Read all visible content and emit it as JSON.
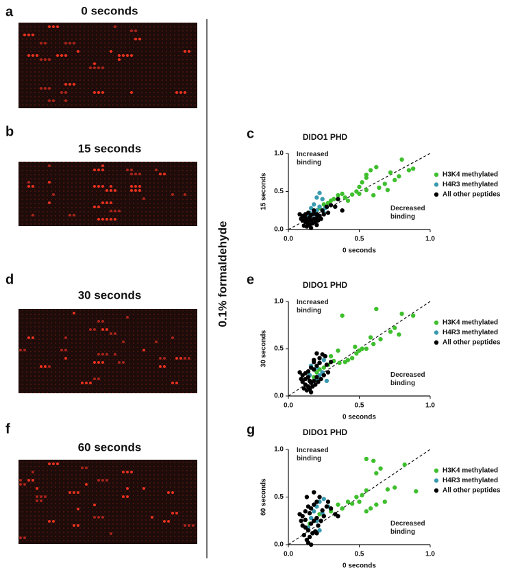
{
  "panels": [
    {
      "letter": "a",
      "title": "0 seconds"
    },
    {
      "letter": "b",
      "title": "15 seconds"
    },
    {
      "letter": "d",
      "title": "30 seconds"
    },
    {
      "letter": "f",
      "title": "60 seconds"
    }
  ],
  "side_label": "0.1% formaldehyde",
  "chart_data": [
    {
      "type": "scatter",
      "letter": "c",
      "title": "DIDO1 PHD",
      "x_label": "0 seconds",
      "y_label": "15 seconds",
      "xlim": [
        0,
        1
      ],
      "ylim": [
        0,
        1
      ],
      "xticks": [
        {
          "value": 0,
          "label": "0.0"
        },
        0.5,
        {
          "value": 1,
          "label": "1.0"
        }
      ],
      "yticks": [
        {
          "value": 0,
          "label": "0.0"
        },
        0.5,
        {
          "value": 1,
          "label": "1.0"
        }
      ],
      "annotations": [
        "Increased binding",
        "Decreased binding"
      ],
      "series": [
        {
          "name": "H3K4 methylated",
          "color": "#3fbf2e",
          "x": [
            0.8,
            0.88,
            0.72,
            0.62,
            0.58,
            0.55,
            0.55,
            0.52,
            0.5,
            0.48,
            0.45,
            0.5,
            0.55,
            0.6,
            0.64,
            0.68,
            0.7,
            0.75,
            0.78,
            0.85,
            0.32,
            0.28,
            0.25,
            0.35,
            0.3,
            0.22,
            0.2,
            0.4,
            0.38,
            0.42
          ],
          "values": [
            0.92,
            0.8,
            0.75,
            0.82,
            0.78,
            0.72,
            0.68,
            0.62,
            0.56,
            0.5,
            0.46,
            0.47,
            0.52,
            0.45,
            0.55,
            0.6,
            0.52,
            0.65,
            0.7,
            0.78,
            0.4,
            0.35,
            0.33,
            0.45,
            0.38,
            0.28,
            0.25,
            0.42,
            0.47,
            0.38
          ]
        },
        {
          "name": "H4R3 methylated",
          "color": "#3a9bb0",
          "x": [
            0.22,
            0.2,
            0.24,
            0.18,
            0.16,
            0.2,
            0.15,
            0.22,
            0.25,
            0.18,
            0.14,
            0.26
          ],
          "values": [
            0.48,
            0.42,
            0.4,
            0.33,
            0.28,
            0.25,
            0.22,
            0.3,
            0.22,
            0.2,
            0.18,
            0.28
          ]
        },
        {
          "name": "All other peptides",
          "color": "#000000",
          "x": [
            0.08,
            0.1,
            0.12,
            0.14,
            0.16,
            0.18,
            0.2,
            0.22,
            0.1,
            0.12,
            0.14,
            0.16,
            0.18,
            0.2,
            0.11,
            0.13,
            0.15,
            0.17,
            0.19,
            0.21,
            0.23,
            0.25,
            0.12,
            0.14,
            0.16,
            0.18,
            0.27,
            0.3,
            0.33,
            0.38,
            0.35,
            0.28,
            0.24,
            0.09,
            0.15,
            0.2
          ],
          "values": [
            0.2,
            0.18,
            0.2,
            0.22,
            0.19,
            0.21,
            0.2,
            0.18,
            0.12,
            0.1,
            0.08,
            0.12,
            0.14,
            0.15,
            0.05,
            0.04,
            0.06,
            0.08,
            0.1,
            0.12,
            0.14,
            0.2,
            0.15,
            0.13,
            0.02,
            0.25,
            0.3,
            0.32,
            0.3,
            0.25,
            0.4,
            0.22,
            0.25,
            0.14,
            0.16,
            0.06
          ]
        }
      ]
    },
    {
      "type": "scatter",
      "letter": "e",
      "title": "DIDO1 PHD",
      "x_label": "0 seconds",
      "y_label": "30 seconds",
      "xlim": [
        0,
        1
      ],
      "ylim": [
        0,
        1
      ],
      "xticks": [
        {
          "value": 0,
          "label": "0.0"
        },
        0.5,
        {
          "value": 1,
          "label": "1.0"
        }
      ],
      "yticks": [
        {
          "value": 0,
          "label": "0.0"
        },
        0.5,
        {
          "value": 1,
          "label": "1.0"
        }
      ],
      "annotations": [
        "Increased binding",
        "Decreased binding"
      ],
      "series": [
        {
          "name": "H3K4 methylated",
          "color": "#3fbf2e",
          "x": [
            0.62,
            0.38,
            0.8,
            0.88,
            0.75,
            0.72,
            0.78,
            0.65,
            0.6,
            0.58,
            0.55,
            0.52,
            0.5,
            0.48,
            0.45,
            0.42,
            0.4,
            0.36,
            0.32,
            0.28,
            0.25,
            0.22,
            0.2,
            0.18,
            0.3,
            0.35,
            0.47
          ],
          "values": [
            0.92,
            0.85,
            0.87,
            0.85,
            0.72,
            0.68,
            0.65,
            0.6,
            0.55,
            0.62,
            0.5,
            0.5,
            0.48,
            0.45,
            0.4,
            0.38,
            0.36,
            0.35,
            0.37,
            0.33,
            0.3,
            0.28,
            0.25,
            0.2,
            0.42,
            0.48,
            0.52
          ]
        },
        {
          "name": "H4R3 methylated",
          "color": "#3a9bb0",
          "x": [
            0.25,
            0.22,
            0.2,
            0.18,
            0.24,
            0.27,
            0.15,
            0.2,
            0.22,
            0.16
          ],
          "values": [
            0.38,
            0.35,
            0.3,
            0.28,
            0.25,
            0.16,
            0.22,
            0.18,
            0.22,
            0.32
          ]
        },
        {
          "name": "All other peptides",
          "color": "#000000",
          "x": [
            0.08,
            0.1,
            0.12,
            0.14,
            0.16,
            0.18,
            0.2,
            0.22,
            0.1,
            0.12,
            0.14,
            0.16,
            0.18,
            0.2,
            0.11,
            0.13,
            0.15,
            0.17,
            0.19,
            0.21,
            0.23,
            0.25,
            0.12,
            0.14,
            0.16,
            0.18,
            0.27,
            0.3,
            0.26,
            0.24,
            0.22,
            0.2,
            0.18,
            0.09,
            0.15,
            0.28
          ],
          "values": [
            0.25,
            0.22,
            0.24,
            0.26,
            0.3,
            0.28,
            0.32,
            0.35,
            0.15,
            0.12,
            0.1,
            0.14,
            0.16,
            0.2,
            0.08,
            0.06,
            0.07,
            0.1,
            0.12,
            0.15,
            0.18,
            0.22,
            0.18,
            0.2,
            0.04,
            0.38,
            0.33,
            0.36,
            0.42,
            0.44,
            0.4,
            0.45,
            0.36,
            0.18,
            0.16,
            0.25
          ]
        }
      ]
    },
    {
      "type": "scatter",
      "letter": "g",
      "title": "DIDO1 PHD",
      "x_label": "0 seconds",
      "y_label": "60 seconds",
      "xlim": [
        0,
        1
      ],
      "ylim": [
        0,
        1
      ],
      "xticks": [
        {
          "value": 0,
          "label": "0.0"
        },
        0.5,
        {
          "value": 1,
          "label": "1.0"
        }
      ],
      "yticks": [
        {
          "value": 0,
          "label": "0.0"
        },
        0.5,
        {
          "value": 1,
          "label": "1.0"
        }
      ],
      "annotations": [
        "Increased binding",
        "Decreased binding"
      ],
      "series": [
        {
          "name": "H3K4 methylated",
          "color": "#3fbf2e",
          "x": [
            0.55,
            0.6,
            0.65,
            0.82,
            0.9,
            0.75,
            0.7,
            0.62,
            0.55,
            0.52,
            0.5,
            0.48,
            0.45,
            0.42,
            0.38,
            0.35,
            0.3,
            0.25,
            0.22,
            0.2,
            0.18,
            0.15,
            0.58,
            0.62,
            0.68,
            0.55
          ],
          "values": [
            0.9,
            0.88,
            0.8,
            0.84,
            0.56,
            0.6,
            0.58,
            0.75,
            0.57,
            0.52,
            0.45,
            0.5,
            0.43,
            0.45,
            0.38,
            0.42,
            0.35,
            0.3,
            0.32,
            0.28,
            0.25,
            0.22,
            0.38,
            0.42,
            0.45,
            0.35
          ]
        },
        {
          "name": "H4R3 methylated",
          "color": "#3a9bb0",
          "x": [
            0.25,
            0.22,
            0.28,
            0.2,
            0.18,
            0.24,
            0.16,
            0.2,
            0.14,
            0.22,
            0.17
          ],
          "values": [
            0.48,
            0.45,
            0.4,
            0.4,
            0.35,
            0.33,
            0.28,
            0.25,
            0.18,
            0.15,
            0.12
          ]
        },
        {
          "name": "All other peptides",
          "color": "#000000",
          "x": [
            0.08,
            0.1,
            0.12,
            0.14,
            0.16,
            0.18,
            0.2,
            0.22,
            0.1,
            0.12,
            0.14,
            0.16,
            0.18,
            0.2,
            0.11,
            0.13,
            0.15,
            0.17,
            0.19,
            0.21,
            0.23,
            0.25,
            0.12,
            0.14,
            0.16,
            0.18,
            0.27,
            0.3,
            0.33,
            0.35,
            0.28,
            0.24,
            0.13,
            0.09,
            0.15,
            0.2
          ],
          "values": [
            0.32,
            0.3,
            0.35,
            0.4,
            0.38,
            0.42,
            0.45,
            0.5,
            0.2,
            0.18,
            0.15,
            0.22,
            0.25,
            0.28,
            0.1,
            0.05,
            0.08,
            0.12,
            0.14,
            0.2,
            0.25,
            0.3,
            0.26,
            0.02,
            0.0,
            0.55,
            0.4,
            0.38,
            0.32,
            0.3,
            0.45,
            0.36,
            0.5,
            0.25,
            0.33,
            0.12
          ]
        }
      ]
    }
  ]
}
